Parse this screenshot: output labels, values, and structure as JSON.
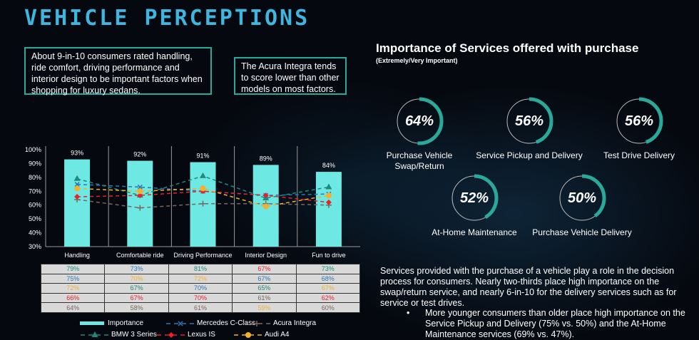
{
  "page_title": "VEHICLE PERCEPTIONS",
  "callouts": [
    "About 9-in-10 consumers rated handling, ride comfort, driving performance and interior design to be important factors when shopping for luxury sedans.",
    "The Acura Integra tends to score lower than other models on most factors."
  ],
  "chart_data": {
    "type": "bar",
    "categories": [
      "Handling",
      "Comfortable ride",
      "Driving Performance",
      "Interior Design",
      "Fun to drive"
    ],
    "ylim": [
      30,
      100
    ],
    "yticks": [
      "30%",
      "40%",
      "50%",
      "60%",
      "70%",
      "80%",
      "90%",
      "100%"
    ],
    "bar_series": {
      "name": "Importance",
      "values": [
        93,
        92,
        91,
        89,
        84
      ],
      "labels": [
        "93%",
        "92%",
        "91%",
        "89%",
        "84%"
      ],
      "color": "#6ee8e2"
    },
    "series": [
      {
        "name": "Mercedes C-Class",
        "values": [
          75,
          73,
          70,
          67,
          68
        ],
        "color": "#2e75b6",
        "marker": "x"
      },
      {
        "name": "Acura Integra",
        "values": [
          64,
          58,
          61,
          61,
          60
        ],
        "color": "#7a6660",
        "marker": "plus"
      },
      {
        "name": "BMW 3 Series",
        "values": [
          79,
          67,
          81,
          65,
          73
        ],
        "color": "#1e8a7e",
        "marker": "triangle"
      },
      {
        "name": "Lexus IS",
        "values": [
          66,
          67,
          70,
          67,
          62
        ],
        "color": "#e8202a",
        "marker": "diamond"
      },
      {
        "name": "Audi A4",
        "values": [
          72,
          70,
          72,
          59,
          67
        ],
        "color": "#f0b030",
        "marker": "circle"
      }
    ],
    "table": [
      [
        [
          "79%",
          "#1e8a7e"
        ],
        [
          "73%",
          "#2e75b6"
        ],
        [
          "81%",
          "#1e8a7e"
        ],
        [
          "67%",
          "#e8202a"
        ],
        [
          "73%",
          "#1e8a7e"
        ]
      ],
      [
        [
          "75%",
          "#2e75b6"
        ],
        [
          "70%",
          "#f0b030"
        ],
        [
          "72%",
          "#f0b030"
        ],
        [
          "67%",
          "#2e75b6"
        ],
        [
          "68%",
          "#2e75b6"
        ]
      ],
      [
        [
          "72%",
          "#f0b030"
        ],
        [
          "67%",
          "#1e8a7e"
        ],
        [
          "70%",
          "#2e75b6"
        ],
        [
          "65%",
          "#1e8a7e"
        ],
        [
          "67%",
          "#f0b030"
        ]
      ],
      [
        [
          "66%",
          "#e8202a"
        ],
        [
          "67%",
          "#e8202a"
        ],
        [
          "70%",
          "#e8202a"
        ],
        [
          "61%",
          "#7a6660"
        ],
        [
          "62%",
          "#e8202a"
        ]
      ],
      [
        [
          "64%",
          "#7a6660"
        ],
        [
          "58%",
          "#7a6660"
        ],
        [
          "61%",
          "#7a6660"
        ],
        [
          "59%",
          "#f0b030"
        ],
        [
          "60%",
          "#7a6660"
        ]
      ]
    ],
    "legend": "bottom"
  },
  "services": {
    "title": "Importance of Services offered with purchase",
    "subtitle": "(Extremely/Very Important)",
    "items": [
      {
        "pct": "64%",
        "value": 64,
        "label": "Purchase Vehicle Swap/Return"
      },
      {
        "pct": "56%",
        "value": 56,
        "label": "Service Pickup and Delivery"
      },
      {
        "pct": "56%",
        "value": 56,
        "label": "Test Drive Delivery"
      },
      {
        "pct": "52%",
        "value": 52,
        "label": "At-Home Maintenance"
      },
      {
        "pct": "50%",
        "value": 50,
        "label": "Purchase Vehicle Delivery"
      }
    ],
    "paragraph": "Services provided with the purchase of a vehicle play a role in the decision process for consumers.  Nearly two-thirds place high importance on the swap/return service, and nearly 6-in-10 for the delivery services such as for service or test drives.",
    "bullet": "More younger consumers than older place high importance on the Service Pickup and Delivery (75% vs. 50%) and the At-Home Maintenance services (69% vs. 47%)."
  },
  "colors": {
    "accent": "#2aa89a",
    "title": "#3fb6e0"
  }
}
